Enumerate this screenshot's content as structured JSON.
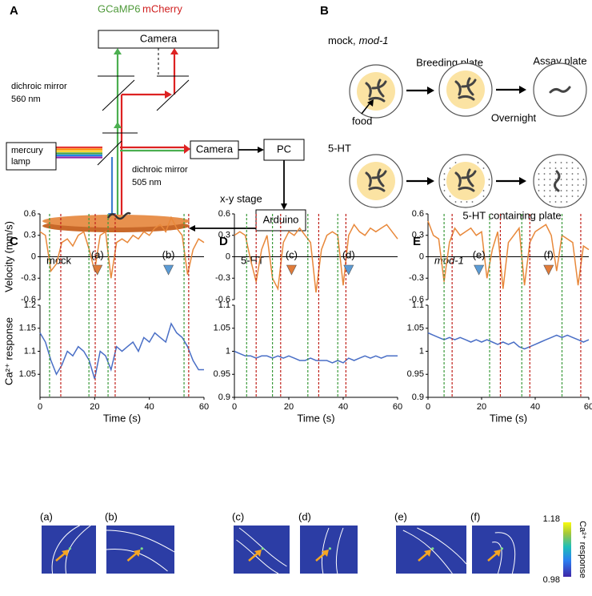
{
  "panel_a": {
    "letter": "A",
    "gcamp": "GCaMP6",
    "mcherry": "mCherry",
    "top_camera": "Camera",
    "mirror_560": [
      "dichroic mirror",
      "560 nm"
    ],
    "lamp": [
      "mercury",
      "lamp"
    ],
    "mirror_505": [
      "dichroic mirror",
      "505 nm"
    ],
    "side_camera": "Camera",
    "pc": "PC",
    "stage": "x-y stage",
    "arduino": "Arduino"
  },
  "panel_b": {
    "letter": "B",
    "mock_label": "mock,",
    "mod1_label": "mod-1",
    "breeding": "Breeding plate",
    "assay": "Assay plate",
    "food": "food",
    "overnight": "Overnight",
    "serotonin": "5-HT",
    "containing": "5-HT containing plate"
  },
  "panels": [
    {
      "letter": "C",
      "condition": "mock",
      "green_dashes": [
        3.5,
        17.9,
        24.9,
        52.7
      ],
      "red_dashes": [
        7.6,
        20.2,
        27.5,
        54.4
      ],
      "markers": [
        {
          "label": "(a)",
          "t": 21,
          "color": "#e07b39"
        },
        {
          "label": "(b)",
          "t": 47,
          "color": "#5b9bd5"
        }
      ]
    },
    {
      "letter": "D",
      "condition": "5-HT",
      "green_dashes": [
        4.5,
        14,
        27,
        38
      ],
      "red_dashes": [
        8,
        17,
        31,
        41
      ],
      "markers": [
        {
          "label": "(c)",
          "t": 21,
          "color": "#e07b39"
        },
        {
          "label": "(d)",
          "t": 42,
          "color": "#5b9bd5"
        }
      ]
    },
    {
      "letter": "E",
      "condition": "mod-1",
      "green_dashes": [
        6,
        23,
        35,
        50
      ],
      "red_dashes": [
        9,
        27,
        38,
        57
      ],
      "markers": [
        {
          "label": "(e)",
          "t": 19,
          "color": "#5b9bd5"
        },
        {
          "label": "(f)",
          "t": 45,
          "color": "#e07b39"
        }
      ]
    }
  ],
  "chart_data": [
    {
      "type": "line",
      "ylabel": "Velocity (mm/s)",
      "xlim": [
        0,
        60
      ],
      "ylim": [
        -0.6,
        0.6
      ],
      "yticks": [
        -0.6,
        -0.3,
        0,
        0.3,
        0.6
      ],
      "x": [
        0,
        2,
        4,
        6,
        8,
        10,
        12,
        14,
        16,
        18,
        20,
        22,
        24,
        26,
        28,
        30,
        32,
        34,
        36,
        38,
        40,
        42,
        44,
        46,
        48,
        50,
        52,
        54,
        56,
        58,
        60
      ],
      "series": [
        {
          "color": "#e8883a",
          "values": [
            0.35,
            0.3,
            -0.2,
            -0.1,
            0.2,
            0.25,
            0.15,
            0.3,
            0.35,
            0.1,
            -0.2,
            0.3,
            0.35,
            -0.3,
            0.2,
            0.25,
            0.2,
            0.3,
            0.25,
            0.35,
            0.3,
            0.4,
            0.45,
            0.35,
            0.55,
            0.4,
            0.3,
            -0.25,
            0.1,
            0.25,
            0.2
          ]
        }
      ]
    },
    {
      "type": "line",
      "ylabel": "Ca²⁺ response",
      "xlabel": "Time (s)",
      "xlim": [
        0,
        60
      ],
      "xticks": [
        0,
        20,
        40,
        60
      ],
      "ylim": [
        1,
        1.2
      ],
      "yticks": [
        1.05,
        1.1,
        1.15,
        1.2
      ],
      "x": [
        0,
        2,
        4,
        6,
        8,
        10,
        12,
        14,
        16,
        18,
        20,
        22,
        24,
        26,
        28,
        30,
        32,
        34,
        36,
        38,
        40,
        42,
        44,
        46,
        48,
        50,
        52,
        54,
        56,
        58,
        60
      ],
      "series": [
        {
          "color": "#4a6fc6",
          "values": [
            1.14,
            1.12,
            1.08,
            1.05,
            1.07,
            1.1,
            1.09,
            1.11,
            1.1,
            1.08,
            1.04,
            1.1,
            1.09,
            1.06,
            1.11,
            1.1,
            1.11,
            1.12,
            1.1,
            1.13,
            1.12,
            1.14,
            1.13,
            1.12,
            1.16,
            1.14,
            1.13,
            1.11,
            1.08,
            1.06,
            1.06
          ]
        }
      ]
    },
    {
      "type": "line",
      "xlim": [
        0,
        60
      ],
      "ylim": [
        -0.6,
        0.6
      ],
      "yticks": [
        -0.6,
        -0.3,
        0,
        0.3,
        0.6
      ],
      "x": [
        0,
        2,
        4,
        6,
        8,
        10,
        12,
        14,
        16,
        18,
        20,
        22,
        24,
        26,
        28,
        30,
        32,
        34,
        36,
        38,
        40,
        42,
        44,
        46,
        48,
        50,
        52,
        54,
        56,
        58,
        60
      ],
      "series": [
        {
          "color": "#e8883a",
          "values": [
            0.3,
            0.35,
            0.3,
            -0.05,
            -0.35,
            0.1,
            0.3,
            -0.3,
            -0.45,
            0.2,
            0.35,
            0.3,
            0.4,
            0.3,
            0.2,
            -0.5,
            0.1,
            0.3,
            0.35,
            0.3,
            -0.4,
            0.3,
            0.45,
            0.35,
            0.3,
            0.4,
            0.35,
            0.4,
            0.45,
            0.35,
            0.25
          ]
        }
      ]
    },
    {
      "type": "line",
      "xlabel": "Time (s)",
      "xlim": [
        0,
        60
      ],
      "xticks": [
        0,
        20,
        40,
        60
      ],
      "ylim": [
        0.9,
        1.1
      ],
      "yticks": [
        0.9,
        0.95,
        1,
        1.05,
        1.1
      ],
      "x": [
        0,
        2,
        4,
        6,
        8,
        10,
        12,
        14,
        16,
        18,
        20,
        22,
        24,
        26,
        28,
        30,
        32,
        34,
        36,
        38,
        40,
        42,
        44,
        46,
        48,
        50,
        52,
        54,
        56,
        58,
        60
      ],
      "series": [
        {
          "color": "#4a6fc6",
          "values": [
            1.0,
            0.995,
            0.99,
            0.99,
            0.985,
            0.99,
            0.99,
            0.985,
            0.99,
            0.985,
            0.99,
            0.985,
            0.98,
            0.98,
            0.985,
            0.98,
            0.98,
            0.98,
            0.975,
            0.98,
            0.975,
            0.985,
            0.98,
            0.985,
            0.99,
            0.985,
            0.99,
            0.985,
            0.99,
            0.99,
            0.99
          ]
        }
      ]
    },
    {
      "type": "line",
      "xlim": [
        0,
        60
      ],
      "ylim": [
        -0.6,
        0.6
      ],
      "yticks": [
        -0.6,
        -0.3,
        0,
        0.3,
        0.6
      ],
      "x": [
        0,
        2,
        4,
        6,
        8,
        10,
        12,
        14,
        16,
        18,
        20,
        22,
        24,
        26,
        28,
        30,
        32,
        34,
        36,
        38,
        40,
        42,
        44,
        46,
        48,
        50,
        52,
        54,
        56,
        58,
        60
      ],
      "series": [
        {
          "color": "#e8883a",
          "values": [
            0.5,
            0.3,
            0.25,
            -0.35,
            0.2,
            0.4,
            0.3,
            0.35,
            0.4,
            0.3,
            0.35,
            -0.3,
            0.1,
            0.35,
            -0.45,
            0.2,
            0.3,
            0.4,
            -0.4,
            0.2,
            0.35,
            0.4,
            0.45,
            0.3,
            -0.2,
            0.3,
            0.25,
            0.2,
            -0.4,
            0.15,
            0.1
          ]
        }
      ]
    },
    {
      "type": "line",
      "xlabel": "Time (s)",
      "xlim": [
        0,
        60
      ],
      "xticks": [
        0,
        20,
        40,
        60
      ],
      "ylim": [
        0.9,
        1.1
      ],
      "yticks": [
        0.9,
        0.95,
        1,
        1.05,
        1.1
      ],
      "x": [
        0,
        2,
        4,
        6,
        8,
        10,
        12,
        14,
        16,
        18,
        20,
        22,
        24,
        26,
        28,
        30,
        32,
        34,
        36,
        38,
        40,
        42,
        44,
        46,
        48,
        50,
        52,
        54,
        56,
        58,
        60
      ],
      "series": [
        {
          "color": "#4a6fc6",
          "values": [
            1.04,
            1.035,
            1.03,
            1.025,
            1.03,
            1.025,
            1.03,
            1.025,
            1.02,
            1.025,
            1.02,
            1.025,
            1.02,
            1.015,
            1.02,
            1.015,
            1.02,
            1.01,
            1.005,
            1.01,
            1.015,
            1.02,
            1.025,
            1.03,
            1.035,
            1.03,
            1.035,
            1.03,
            1.025,
            1.02,
            1.025
          ]
        }
      ]
    }
  ],
  "images": {
    "labels": [
      "(a)",
      "(b)",
      "(c)",
      "(d)",
      "(e)",
      "(f)"
    ]
  },
  "colorbar": {
    "max": 1.18,
    "min": 0.98,
    "label": "Ca²⁺ response"
  }
}
